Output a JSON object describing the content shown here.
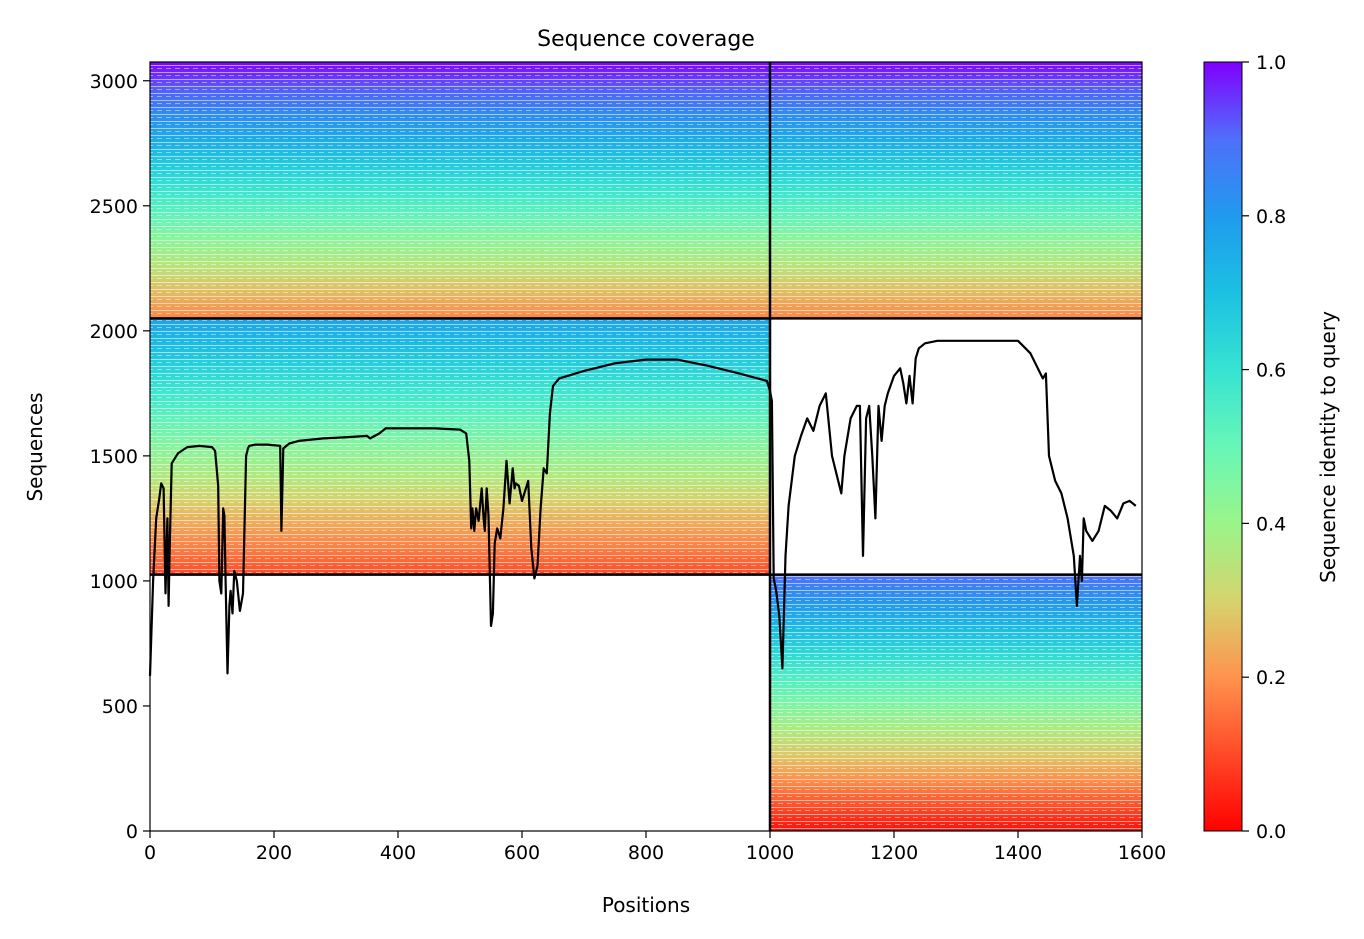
{
  "chart_data": {
    "type": "heatmap",
    "title": "Sequence coverage",
    "xlabel": "Positions",
    "ylabel": "Sequences",
    "xlim": [
      0,
      1600
    ],
    "ylim": [
      0,
      3075
    ],
    "x_ticks": [
      0,
      200,
      400,
      600,
      800,
      1000,
      1200,
      1400,
      1600
    ],
    "y_ticks": [
      0,
      500,
      1000,
      1500,
      2000,
      2500,
      3000
    ],
    "colorbar": {
      "label": "Sequence identity to query",
      "colormap": "rainbow_r",
      "range": [
        0,
        1
      ],
      "ticks": [
        "0.0",
        "0.2",
        "0.4",
        "0.6",
        "0.8",
        "1.0"
      ]
    },
    "chain_boundary_x": 1000,
    "row_boundaries_y": [
      1025,
      2050
    ],
    "blocks": [
      {
        "x": [
          0,
          1000
        ],
        "y": [
          2050,
          3075
        ],
        "identity": [
          0.18,
          1.0
        ]
      },
      {
        "x": [
          1000,
          1600
        ],
        "y": [
          2050,
          3075
        ],
        "identity": [
          0.18,
          1.0
        ]
      },
      {
        "x": [
          0,
          1000
        ],
        "y": [
          1025,
          2050
        ],
        "identity": [
          0.1,
          0.78
        ]
      },
      {
        "x": [
          1000,
          1600
        ],
        "y": [
          0,
          1025
        ],
        "identity": [
          0.02,
          0.9
        ]
      }
    ],
    "coverage_line": {
      "color": "#000000",
      "x": [
        0,
        5,
        10,
        15,
        18,
        22,
        25,
        28,
        30,
        32,
        35,
        45,
        60,
        80,
        100,
        105,
        110,
        112,
        115,
        118,
        120,
        122,
        125,
        128,
        130,
        133,
        136,
        140,
        145,
        150,
        155,
        158,
        160,
        170,
        190,
        210,
        212,
        215,
        220,
        225,
        240,
        280,
        320,
        350,
        355,
        370,
        380,
        420,
        460,
        500,
        510,
        515,
        518,
        520,
        523,
        526,
        530,
        535,
        538,
        540,
        543,
        546,
        550,
        553,
        556,
        560,
        565,
        570,
        575,
        580,
        585,
        588,
        590,
        595,
        600,
        610,
        615,
        620,
        625,
        630,
        635,
        640,
        645,
        650,
        660,
        700,
        750,
        800,
        850,
        900,
        950,
        995,
        1000,
        1003,
        1006,
        1010,
        1015,
        1020,
        1025,
        1030,
        1040,
        1050,
        1060,
        1070,
        1080,
        1090,
        1100,
        1110,
        1115,
        1120,
        1130,
        1140,
        1145,
        1150,
        1155,
        1160,
        1165,
        1170,
        1175,
        1180,
        1185,
        1190,
        1200,
        1210,
        1215,
        1220,
        1225,
        1230,
        1235,
        1240,
        1250,
        1270,
        1300,
        1350,
        1400,
        1420,
        1440,
        1445,
        1450,
        1460,
        1470,
        1480,
        1490,
        1495,
        1500,
        1503,
        1506,
        1510,
        1515,
        1520,
        1530,
        1540,
        1550,
        1560,
        1570,
        1580,
        1590,
        1600
      ],
      "y": [
        620,
        1000,
        1250,
        1330,
        1390,
        1370,
        950,
        1250,
        900,
        1150,
        1470,
        1510,
        1535,
        1540,
        1535,
        1520,
        1380,
        1000,
        950,
        1290,
        1260,
        1000,
        630,
        900,
        960,
        870,
        1040,
        1000,
        880,
        950,
        1500,
        1530,
        1540,
        1545,
        1545,
        1540,
        1200,
        1530,
        1540,
        1550,
        1560,
        1570,
        1575,
        1580,
        1570,
        1590,
        1610,
        1610,
        1610,
        1605,
        1590,
        1480,
        1210,
        1290,
        1200,
        1290,
        1240,
        1370,
        1250,
        1200,
        1370,
        1260,
        820,
        870,
        1150,
        1210,
        1170,
        1290,
        1480,
        1310,
        1450,
        1370,
        1390,
        1380,
        1320,
        1400,
        1130,
        1010,
        1060,
        1290,
        1450,
        1430,
        1670,
        1780,
        1810,
        1840,
        1870,
        1885,
        1885,
        1860,
        1830,
        1800,
        1760,
        1720,
        1010,
        960,
        860,
        650,
        1100,
        1300,
        1500,
        1580,
        1650,
        1600,
        1700,
        1750,
        1500,
        1400,
        1350,
        1500,
        1650,
        1700,
        1700,
        1100,
        1650,
        1700,
        1500,
        1250,
        1700,
        1560,
        1700,
        1750,
        1820,
        1850,
        1790,
        1710,
        1820,
        1710,
        1890,
        1930,
        1950,
        1960,
        1960,
        1960,
        1960,
        1910,
        1810,
        1830,
        1500,
        1400,
        1350,
        1250,
        1100,
        900,
        1100,
        1000,
        1250,
        1200,
        1180,
        1160,
        1200,
        1300,
        1280,
        1250,
        1310,
        1320,
        1300
      ]
    },
    "grid": false,
    "legend": "none"
  }
}
